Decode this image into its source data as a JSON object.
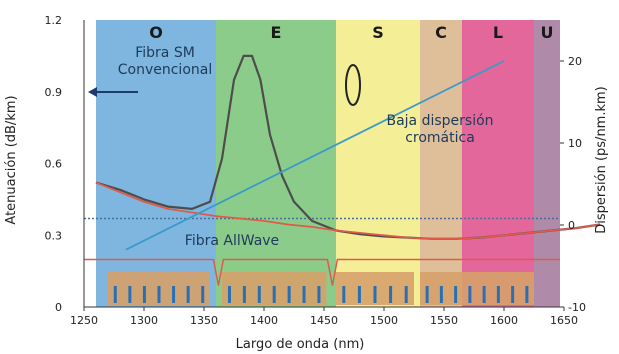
{
  "chart_data": {
    "type": "line",
    "xlabel": "Largo de onda (nm)",
    "ylabel_left": "Atenuación (dB/km)",
    "ylabel_right": "Dispersión (ps/nm.km)",
    "xlim": [
      1250,
      1680
    ],
    "ylim_left": [
      0,
      1.2
    ],
    "ylim_right": [
      -10,
      25
    ],
    "x_ticks": [
      "1250",
      "1300",
      "1350",
      "1400",
      "1450",
      "1500",
      "1550",
      "1600",
      "1650"
    ],
    "y_left_ticks": [
      "0",
      "0.3",
      "0.6",
      "0.9",
      "1.2"
    ],
    "y_right_ticks": [
      "-10",
      "0",
      "10",
      "20"
    ],
    "bands": [
      {
        "label": "O",
        "from": 1260,
        "to": 1360,
        "color": "#7fb6e0"
      },
      {
        "label": "E",
        "from": 1360,
        "to": 1460,
        "color": "#8ccc8a"
      },
      {
        "label": "S",
        "from": 1460,
        "to": 1530,
        "color": "#f4ee96"
      },
      {
        "label": "C",
        "from": 1530,
        "to": 1565,
        "color": "#dfbf9a"
      },
      {
        "label": "L",
        "from": 1565,
        "to": 1625,
        "color": "#e4679c"
      },
      {
        "label": "U",
        "from": 1625,
        "to": 1680,
        "color": "#b08aa9"
      }
    ],
    "series": [
      {
        "axis": "left",
        "color": "#4d4d4d",
        "x": [
          1260,
          1280,
          1300,
          1320,
          1340,
          1355,
          1365,
          1375,
          1383,
          1390,
          1397,
          1405,
          1415,
          1425,
          1440,
          1460,
          1480,
          1500,
          1520,
          1540,
          1560,
          1580,
          1600,
          1620,
          1640,
          1660,
          1680
        ],
        "y": [
          0.52,
          0.49,
          0.45,
          0.42,
          0.41,
          0.44,
          0.62,
          0.95,
          1.05,
          1.05,
          0.95,
          0.72,
          0.55,
          0.44,
          0.36,
          0.32,
          0.305,
          0.295,
          0.29,
          0.285,
          0.285,
          0.29,
          0.3,
          0.31,
          0.32,
          0.33,
          0.345
        ]
      },
      {
        "axis": "left",
        "color": "#e05a4a",
        "x": [
          1260,
          1280,
          1300,
          1320,
          1340,
          1360,
          1380,
          1400,
          1420,
          1440,
          1460,
          1480,
          1500,
          1520,
          1540,
          1560,
          1580,
          1600,
          1620,
          1640,
          1660,
          1680
        ],
        "y": [
          0.52,
          0.48,
          0.44,
          0.41,
          0.395,
          0.38,
          0.37,
          0.36,
          0.345,
          0.335,
          0.32,
          0.31,
          0.3,
          0.29,
          0.285,
          0.285,
          0.29,
          0.3,
          0.31,
          0.32,
          0.33,
          0.345
        ]
      },
      {
        "axis": "right",
        "color": "#3a9ac8",
        "x": [
          1285,
          1600
        ],
        "y": [
          -3,
          20
        ]
      }
    ],
    "references": [
      {
        "axis": "right",
        "value": 0.8,
        "color": "#4a6f9a",
        "style": "dotted"
      },
      {
        "axis": "right",
        "value": -4.2,
        "color": "#e05a4a",
        "style": "solid"
      }
    ],
    "channel_notches": [
      1362,
      1457
    ],
    "channel_comb_ranges": [
      [
        1270,
        1355
      ],
      [
        1365,
        1452
      ],
      [
        1460,
        1525
      ],
      [
        1530,
        1625
      ]
    ],
    "annotations": [
      "Fibra SM\nConvencional",
      "Baja dispersión\ncromática",
      "Fibra AllWave"
    ]
  }
}
